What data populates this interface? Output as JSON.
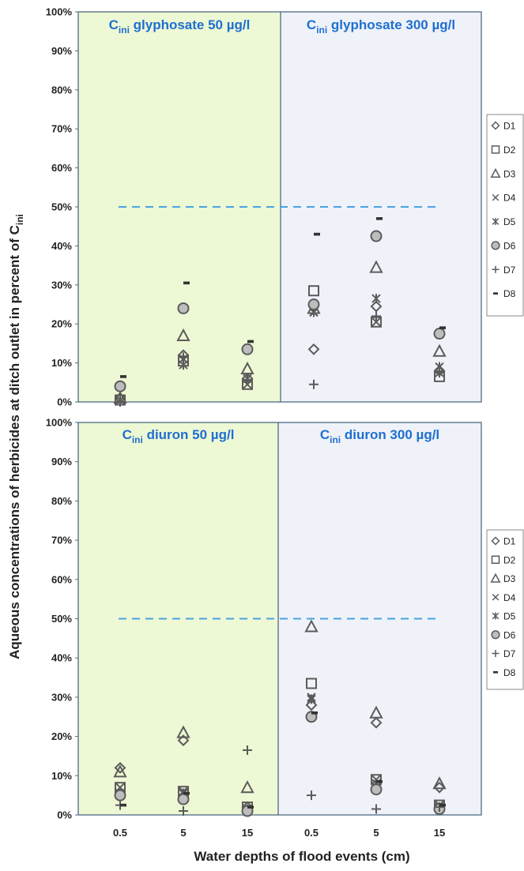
{
  "y_axis_label": "Aqueous concentrations of herbicides at ditch outlet in percent of C",
  "y_axis_label_sub": "ini",
  "x_axis_label": "Water depths of flood events (cm)",
  "colors": {
    "green_bg": "#edf8d4",
    "blue_bg": "#eff2f8",
    "frame": "#4f6a85",
    "dash": "#4aa3df",
    "title": "#1f6fd1",
    "marker": "#5b5b5b",
    "marker_fill": "#bdbdbd"
  },
  "chart_data": [
    {
      "type": "scatter",
      "name": "glyphosate",
      "panel_titles": [
        {
          "main": "C",
          "sub": "ini",
          "rest": " glyphosate 50 µg/l"
        },
        {
          "main": "C",
          "sub": "ini",
          "rest": " glyphosate 300 µg/l"
        }
      ],
      "categories": [
        "0.5",
        "5",
        "15",
        "0.5",
        "5",
        "15"
      ],
      "ylim": [
        0,
        100
      ],
      "y_ticks": [
        "0%",
        "10%",
        "20%",
        "30%",
        "40%",
        "50%",
        "60%",
        "70%",
        "80%",
        "90%",
        "100%"
      ],
      "reference_line": 50,
      "legend": [
        "D1",
        "D2",
        "D3",
        "D4",
        "D5",
        "D6",
        "D7",
        "D8"
      ],
      "series": [
        {
          "name": "D1",
          "marker": "diamond",
          "values": [
            1,
            12,
            6,
            13.5,
            24.5,
            8
          ]
        },
        {
          "name": "D2",
          "marker": "square",
          "values": [
            0.5,
            10.5,
            4.5,
            28.5,
            20.5,
            6.5
          ]
        },
        {
          "name": "D3",
          "marker": "triangle",
          "values": [
            1,
            17,
            8.5,
            24,
            34.5,
            13
          ]
        },
        {
          "name": "D4",
          "marker": "x",
          "values": [
            0.5,
            11,
            4.5,
            23,
            20.5,
            7.5
          ]
        },
        {
          "name": "D5",
          "marker": "asterisk",
          "values": [
            0.5,
            9.5,
            6,
            23,
            26.5,
            9
          ]
        },
        {
          "name": "D6",
          "marker": "circle",
          "values": [
            4,
            24,
            13.5,
            25,
            42.5,
            17.5
          ]
        },
        {
          "name": "D7",
          "marker": "plus",
          "values": [
            0,
            11.5,
            5.5,
            4.5,
            22,
            7.5
          ]
        },
        {
          "name": "D8",
          "marker": "dash",
          "values": [
            6.5,
            30.5,
            15.5,
            43,
            47,
            19
          ]
        }
      ]
    },
    {
      "type": "scatter",
      "name": "diuron",
      "panel_titles": [
        {
          "main": "C",
          "sub": "ini",
          "rest": " diuron 50 µg/l"
        },
        {
          "main": "C",
          "sub": "ini",
          "rest": " diuron 300 µg/l"
        }
      ],
      "categories": [
        "0.5",
        "5",
        "15",
        "0.5",
        "5",
        "15"
      ],
      "ylim": [
        0,
        100
      ],
      "y_ticks": [
        "0%",
        "10%",
        "20%",
        "30%",
        "40%",
        "50%",
        "60%",
        "70%",
        "80%",
        "90%",
        "100%"
      ],
      "reference_line": 50,
      "legend": [
        "D1",
        "D2",
        "D3",
        "D4",
        "D5",
        "D6",
        "D7",
        "D8"
      ],
      "series": [
        {
          "name": "D1",
          "marker": "diamond",
          "values": [
            12,
            19,
            2,
            28,
            23.5,
            7
          ]
        },
        {
          "name": "D2",
          "marker": "square",
          "values": [
            7,
            6,
            2,
            33.5,
            9,
            2.5
          ]
        },
        {
          "name": "D3",
          "marker": "triangle",
          "values": [
            11,
            21,
            7,
            48,
            26,
            8
          ]
        },
        {
          "name": "D4",
          "marker": "x",
          "values": [
            7,
            6,
            1.5,
            30,
            9,
            2.5
          ]
        },
        {
          "name": "D5",
          "marker": "asterisk",
          "values": [
            5.5,
            5.5,
            1.5,
            29.5,
            8,
            2
          ]
        },
        {
          "name": "D6",
          "marker": "circle",
          "values": [
            5,
            4,
            1,
            25,
            6.5,
            1.5
          ]
        },
        {
          "name": "D7",
          "marker": "plus",
          "values": [
            2.5,
            1,
            16.5,
            5,
            1.5,
            2
          ]
        },
        {
          "name": "D8",
          "marker": "dash",
          "values": [
            2.5,
            5.5,
            2,
            26,
            8.5,
            2.5
          ]
        }
      ]
    }
  ]
}
